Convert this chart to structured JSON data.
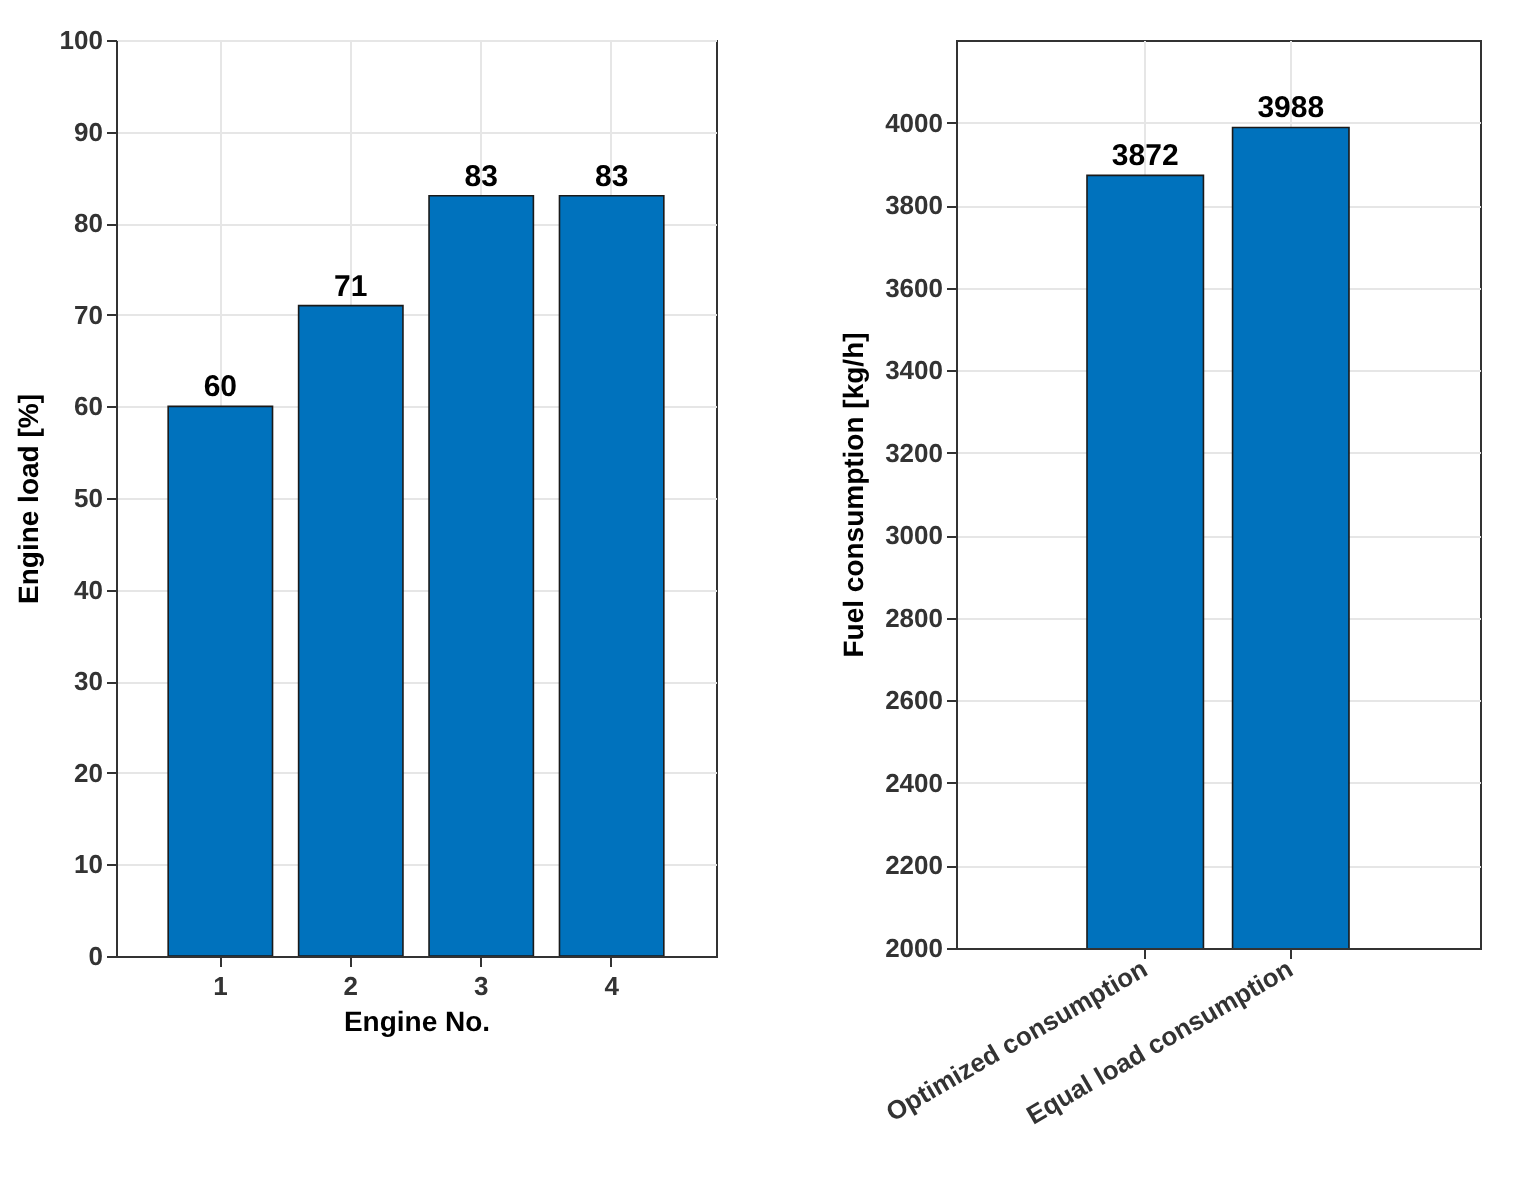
{
  "chart_data": [
    {
      "type": "bar",
      "xlabel": "Engine No.",
      "ylabel": "Engine load [%]",
      "categories": [
        "1",
        "2",
        "3",
        "4"
      ],
      "values": [
        60,
        71,
        83,
        83
      ],
      "color": "#0072bd",
      "ylim": [
        0,
        100
      ],
      "yticks": [
        0,
        10,
        20,
        30,
        40,
        50,
        60,
        70,
        80,
        90,
        100
      ],
      "grid": true,
      "data_labels": true
    },
    {
      "type": "bar",
      "ylabel": "Fuel consumption [kg/h]",
      "categories": [
        "Optimized consumption",
        "Equal load consumption"
      ],
      "values": [
        3872,
        3988
      ],
      "color": "#0072bd",
      "ylim": [
        2000,
        4200
      ],
      "yticks": [
        2000,
        2200,
        2400,
        2600,
        2800,
        3000,
        3200,
        3400,
        3600,
        3800,
        4000
      ],
      "grid": true,
      "data_labels": true
    }
  ]
}
